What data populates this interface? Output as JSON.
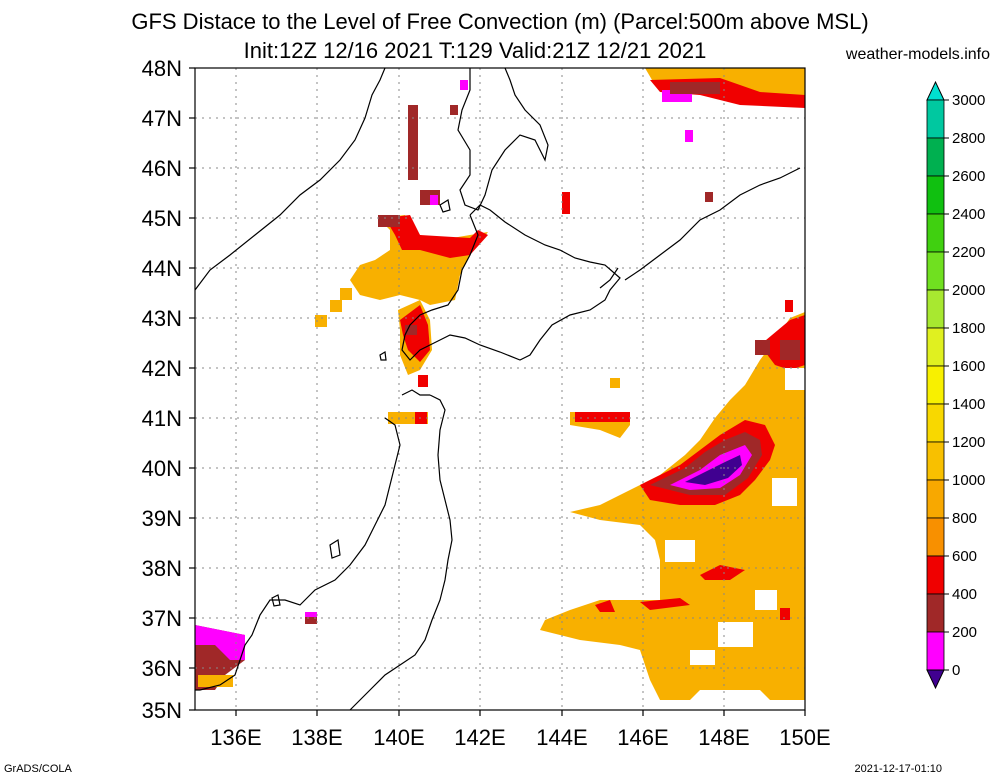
{
  "header": {
    "title_line1": "GFS Distace to the Level of Free Convection (m) (Parcel:500m above MSL)",
    "title_line2": "Init:12Z 12/16 2021 T:129 Valid:21Z 12/21 2021",
    "site": "weather-models.info"
  },
  "footer": {
    "left": "GrADS/COLA",
    "right": "2021-12-17-01:10"
  },
  "map": {
    "lat_labels": [
      "48N",
      "47N",
      "46N",
      "45N",
      "44N",
      "43N",
      "42N",
      "41N",
      "40N",
      "39N",
      "38N",
      "37N",
      "36N",
      "35N"
    ],
    "lon_labels": [
      "136E",
      "138E",
      "140E",
      "142E",
      "144E",
      "146E",
      "148E",
      "150E"
    ]
  },
  "colorbar": {
    "labels": [
      "3000",
      "2800",
      "2600",
      "2400",
      "2200",
      "2000",
      "1800",
      "1600",
      "1400",
      "1200",
      "1000",
      "800",
      "600",
      "400",
      "200",
      "0"
    ],
    "colors": [
      "#00e0d0",
      "#00c8a0",
      "#00b050",
      "#10c010",
      "#40d010",
      "#70e020",
      "#a8e830",
      "#e0f020",
      "#f8f000",
      "#f8d800",
      "#f8c000",
      "#f8a800",
      "#f89000",
      "#f00000",
      "#a02828",
      "#ff00ff",
      "#400090"
    ]
  }
}
